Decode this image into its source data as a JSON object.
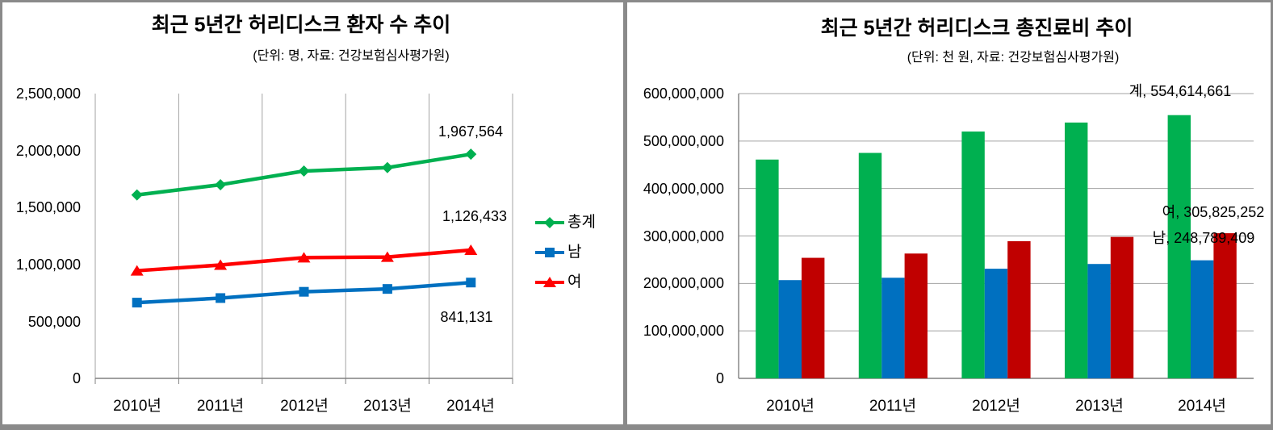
{
  "figure": {
    "description": "Two side-by-side Excel-style charts about herniated lumbar disc statistics over 5 years",
    "border_color": "#8a8a8a",
    "background": "#ffffff"
  },
  "chart_data": [
    {
      "type": "line",
      "title": "최근 5년간 허리디스크 환자 수 추이",
      "subtitle": "(단위: 명, 자료: 건강보험심사평가원)",
      "categories": [
        "2010년",
        "2011년",
        "2012년",
        "2013년",
        "2014년"
      ],
      "series": [
        {
          "name": "총계",
          "marker": "diamond",
          "color": "#00B050",
          "values": [
            1610000,
            1700000,
            1820000,
            1850000,
            1967564
          ]
        },
        {
          "name": "남",
          "marker": "square",
          "color": "#0070C0",
          "values": [
            665000,
            705000,
            760000,
            785000,
            841131
          ]
        },
        {
          "name": "여",
          "marker": "triangle",
          "color": "#FF0000",
          "values": [
            945000,
            995000,
            1060000,
            1065000,
            1126433
          ]
        }
      ],
      "ylim": [
        0,
        2500000
      ],
      "ytick_labels": [
        "2,500,000",
        "2,000,000",
        "1,500,000",
        "1,000,000",
        "500,000",
        "0"
      ],
      "grid": "vertical",
      "legend_position": "right",
      "data_labels": [
        {
          "series": "총계",
          "point": "2014년",
          "text": "1,967,564"
        },
        {
          "series": "여",
          "point": "2014년",
          "text": "1,126,433"
        },
        {
          "series": "남",
          "point": "2014년",
          "text": "841,131"
        }
      ]
    },
    {
      "type": "bar",
      "title": "최근 5년간 허리디스크 총진료비 추이",
      "subtitle": "(단위: 천 원, 자료: 건강보험심사평가원)",
      "categories": [
        "2010년",
        "2011년",
        "2012년",
        "2013년",
        "2014년"
      ],
      "series": [
        {
          "name": "계",
          "color": "#00B050",
          "values": [
            461000000,
            475000000,
            520000000,
            539000000,
            554614661
          ]
        },
        {
          "name": "남",
          "color": "#0070C0",
          "values": [
            207000000,
            212000000,
            231000000,
            241000000,
            248789409
          ]
        },
        {
          "name": "여",
          "color": "#C00000",
          "values": [
            254000000,
            263000000,
            289000000,
            298000000,
            305825252
          ]
        }
      ],
      "ylim": [
        0,
        600000000
      ],
      "ytick_labels": [
        "600,000,000",
        "500,000,000",
        "400,000,000",
        "300,000,000",
        "200,000,000",
        "100,000,000",
        "0"
      ],
      "grid": "horizontal",
      "legend_position": "none",
      "data_labels": [
        {
          "series": "계",
          "point": "2014년",
          "text": "계, 554,614,661"
        },
        {
          "series": "여",
          "point": "2014년",
          "text": "여, 305,825,252"
        },
        {
          "series": "남",
          "point": "2014년",
          "text": "남, 248,789,409"
        }
      ]
    }
  ],
  "style": {
    "gridline_color": "#A3A3A3",
    "axis_color": "#808080"
  }
}
